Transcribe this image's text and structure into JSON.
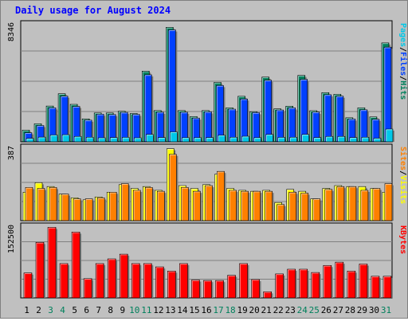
{
  "title": "Daily usage for August 2024",
  "colors": {
    "background": "#c0c0c0",
    "title": "#0000ff",
    "hits": "#00805c",
    "files": "#0040ff",
    "pages": "#00c8e8",
    "visits": "#ffff00",
    "sites": "#ff8000",
    "kbytes": "#ff0000",
    "weekend_label": "#00805c",
    "weekday_label": "#000000"
  },
  "chart_data": [
    {
      "type": "bar",
      "name": "hits-files-pages",
      "ytick": "8346",
      "ylim": [
        0,
        8346
      ],
      "legend": [
        "Pages",
        "/",
        "Files",
        "/",
        "Hits"
      ],
      "series": [
        {
          "name": "Hits",
          "values": [
            820,
            1270,
            2530,
            3400,
            2650,
            1620,
            2040,
            2040,
            2160,
            2000,
            5000,
            2210,
            8100,
            2210,
            1780,
            2210,
            4200,
            2400,
            3220,
            2130,
            4580,
            2330,
            2520,
            4700,
            2200,
            3480,
            3360,
            1700,
            2400,
            1760,
            7000
          ]
        },
        {
          "name": "Files",
          "values": [
            640,
            1150,
            2400,
            3230,
            2500,
            1530,
            1950,
            1930,
            2080,
            1940,
            4740,
            2090,
            7920,
            2090,
            1680,
            2120,
            3980,
            2310,
            3030,
            2060,
            4360,
            2250,
            2400,
            4420,
            2100,
            3330,
            3230,
            1610,
            2260,
            1590,
            6700
          ]
        },
        {
          "name": "Pages",
          "values": [
            240,
            330,
            480,
            500,
            380,
            320,
            280,
            300,
            310,
            280,
            520,
            300,
            700,
            290,
            290,
            300,
            460,
            320,
            390,
            290,
            520,
            310,
            320,
            520,
            300,
            380,
            380,
            300,
            320,
            250,
            900
          ]
        }
      ]
    },
    {
      "type": "bar",
      "name": "visits-sites",
      "ytick": "387",
      "ylim": [
        0,
        387
      ],
      "legend": [
        "Sites",
        "/",
        "Visits"
      ],
      "series": [
        {
          "name": "Visits",
          "values": [
            150,
            200,
            180,
            140,
            120,
            110,
            125,
            150,
            190,
            170,
            180,
            160,
            380,
            185,
            170,
            190,
            245,
            170,
            160,
            155,
            160,
            95,
            165,
            155,
            115,
            170,
            185,
            180,
            180,
            170,
            150
          ]
        },
        {
          "name": "Sites",
          "values": [
            175,
            170,
            175,
            140,
            115,
            115,
            120,
            150,
            195,
            160,
            175,
            155,
            350,
            175,
            155,
            185,
            260,
            160,
            155,
            155,
            155,
            85,
            150,
            145,
            115,
            165,
            180,
            180,
            160,
            170,
            195
          ]
        }
      ]
    },
    {
      "type": "bar",
      "name": "kbytes",
      "ytick": "152500",
      "ylim": [
        0,
        152500
      ],
      "legend": [
        "KBytes"
      ],
      "series": [
        {
          "name": "KBytes",
          "values": [
            53000,
            118000,
            150000,
            73000,
            140000,
            41000,
            73000,
            83000,
            93000,
            73000,
            73000,
            66000,
            57000,
            73000,
            38000,
            37000,
            37000,
            48000,
            73000,
            39000,
            13000,
            51000,
            61000,
            61000,
            54000,
            69000,
            76000,
            57000,
            72000,
            46000,
            46000
          ]
        }
      ]
    }
  ],
  "days": [
    "1",
    "2",
    "3",
    "4",
    "5",
    "6",
    "7",
    "8",
    "9",
    "10",
    "11",
    "12",
    "13",
    "14",
    "15",
    "16",
    "17",
    "18",
    "19",
    "20",
    "21",
    "22",
    "23",
    "24",
    "25",
    "26",
    "27",
    "28",
    "29",
    "30",
    "31"
  ],
  "weekend_days": [
    3,
    4,
    10,
    11,
    17,
    18,
    24,
    25,
    31
  ]
}
